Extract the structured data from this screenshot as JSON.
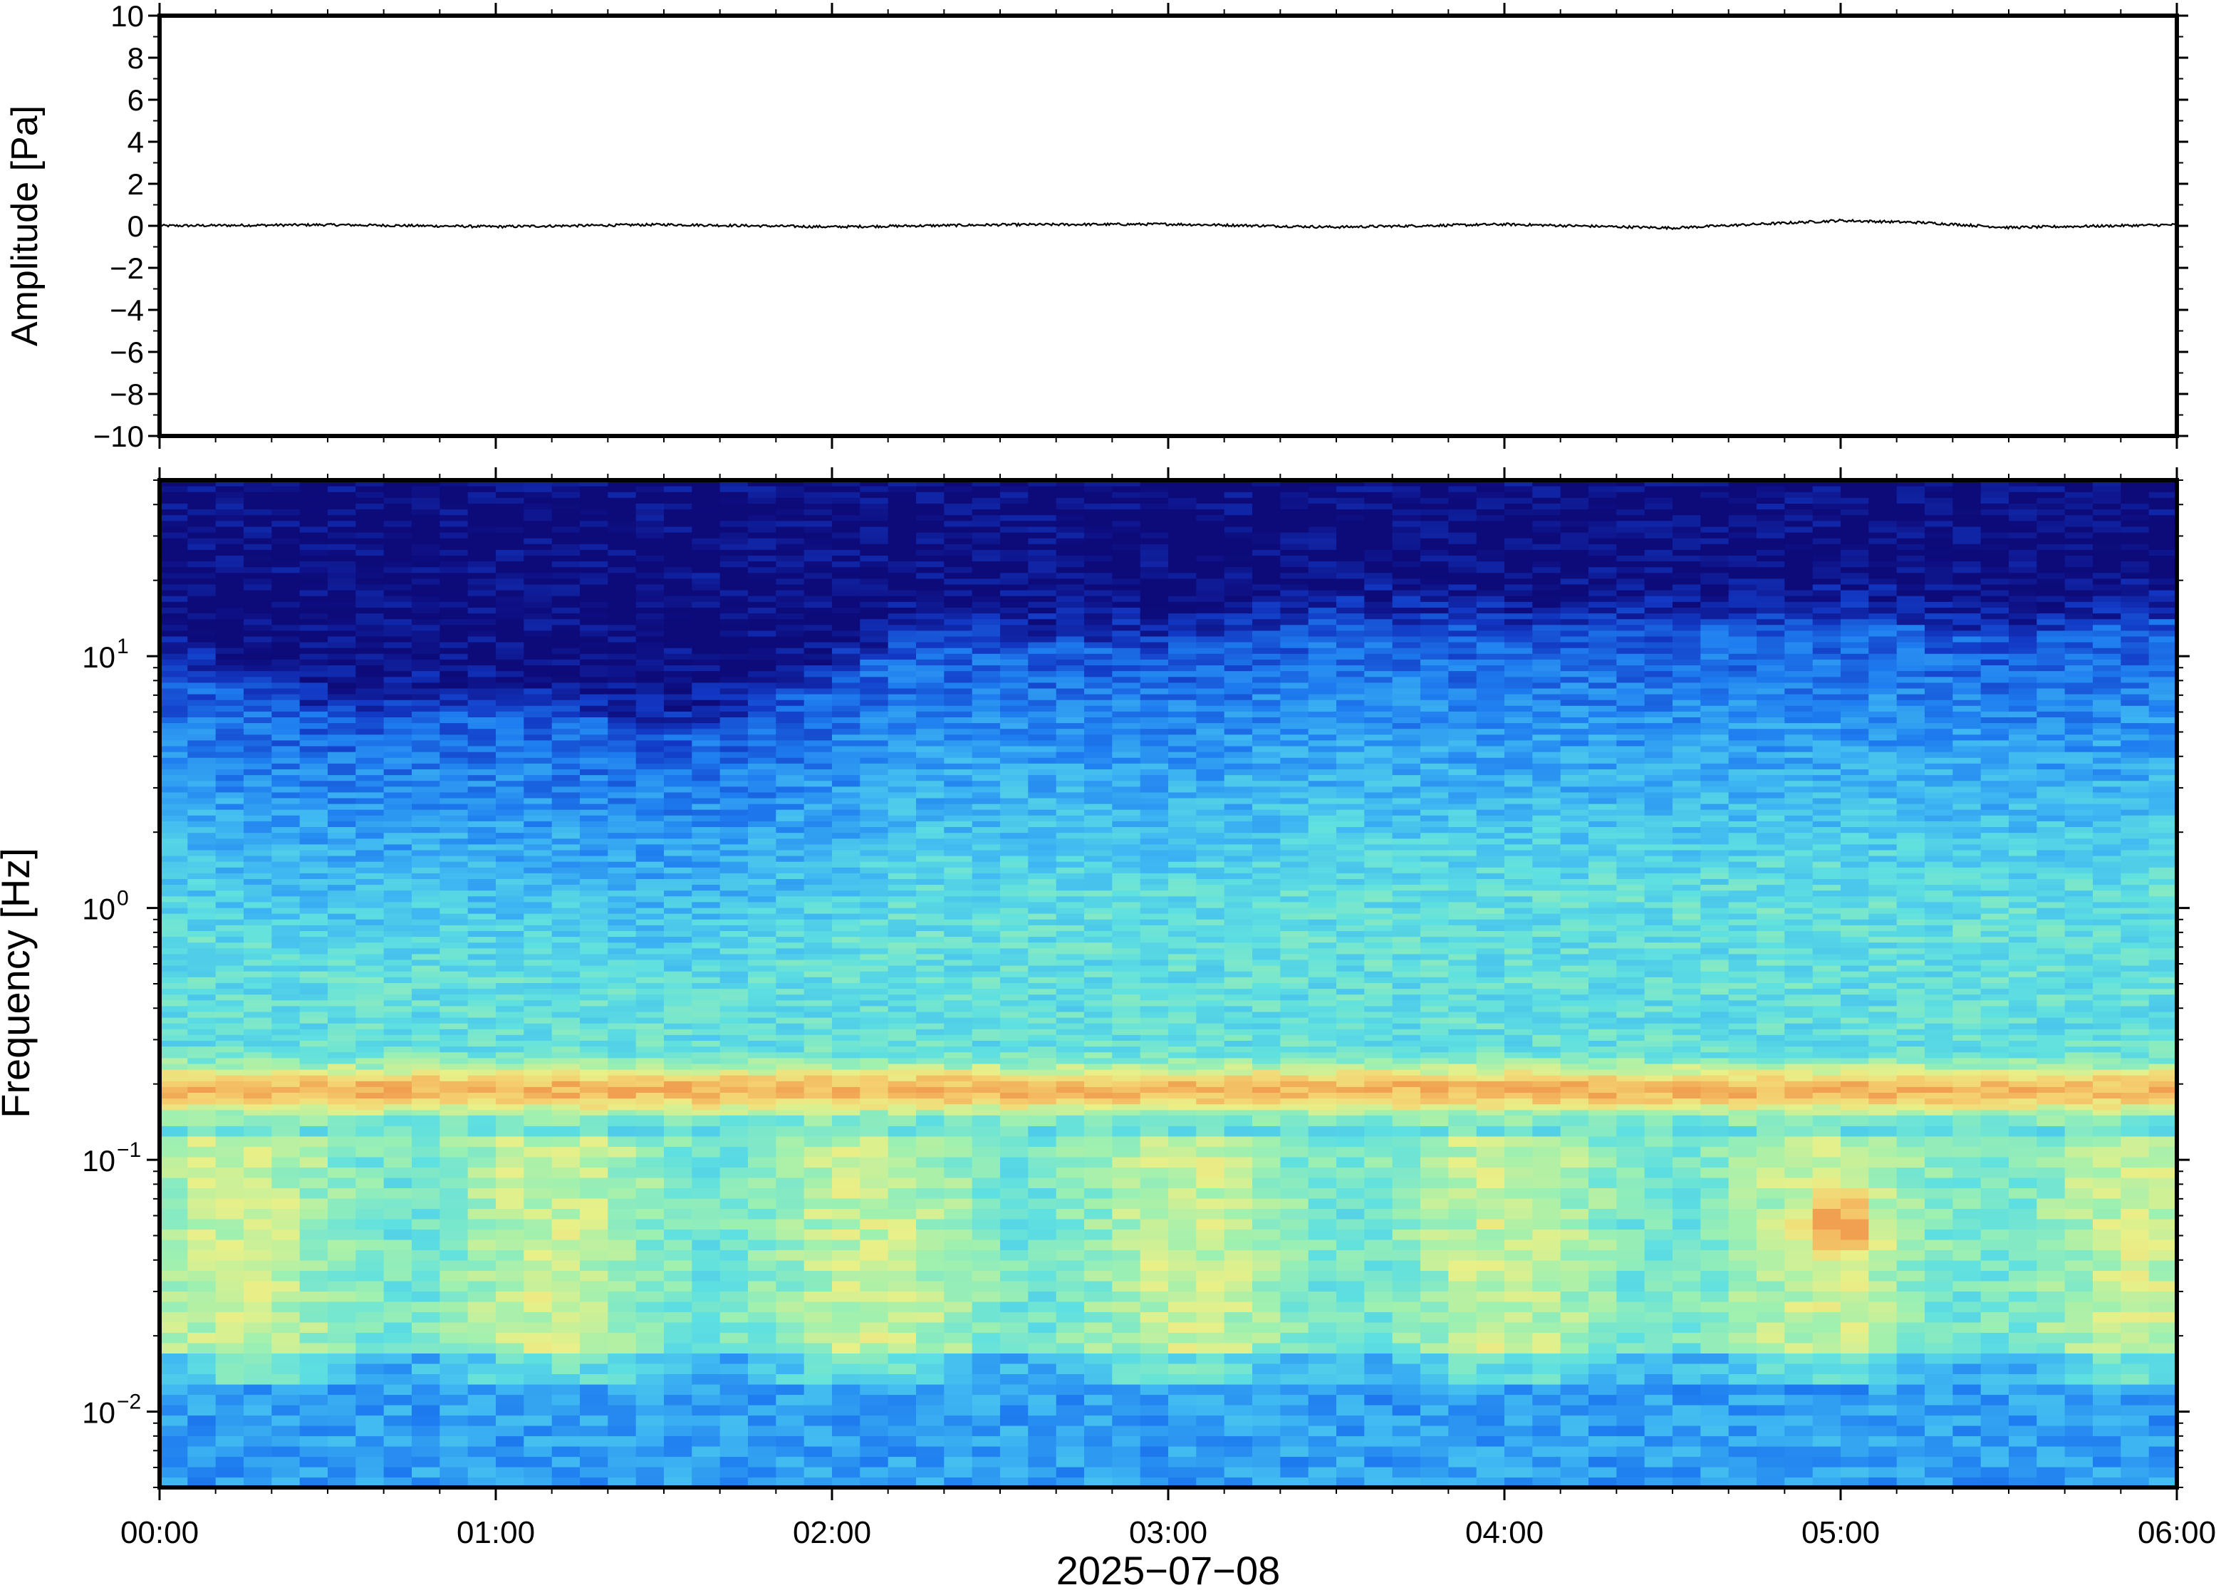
{
  "chart_data": [
    {
      "type": "line",
      "ylabel": "Amplitude [Pa]",
      "ylim": [
        -10,
        10
      ],
      "y_ticks": [
        10,
        8,
        6,
        4,
        2,
        0,
        -2,
        -4,
        -6,
        -8,
        -10
      ],
      "y_tick_labels": [
        "10",
        "8",
        "6",
        "4",
        "2",
        "0",
        "−2",
        "−4",
        "−6",
        "−8",
        "−10"
      ],
      "xlim": [
        "00:00",
        "06:00"
      ],
      "series": [
        {
          "points": [
            [
              "00:00",
              0.0
            ],
            [
              "00:30",
              0.05
            ],
            [
              "01:00",
              -0.04
            ],
            [
              "01:30",
              0.06
            ],
            [
              "02:00",
              -0.05
            ],
            [
              "02:30",
              0.05
            ],
            [
              "03:00",
              0.08
            ],
            [
              "03:30",
              -0.06
            ],
            [
              "04:00",
              0.07
            ],
            [
              "04:30",
              -0.1
            ],
            [
              "05:00",
              0.25
            ],
            [
              "05:15",
              0.15
            ],
            [
              "05:30",
              -0.08
            ],
            [
              "06:00",
              0.05
            ]
          ]
        }
      ],
      "line_color": "#000000",
      "grid": false
    },
    {
      "type": "heatmap",
      "ylabel": "Frequency [Hz]",
      "yscale": "log",
      "ylim": [
        0.005,
        50
      ],
      "y_ticks": [
        0.01,
        0.1,
        1,
        10
      ],
      "y_tick_labels": [
        {
          "base": "10",
          "exp": "−2"
        },
        {
          "base": "10",
          "exp": "−1"
        },
        {
          "base": "10",
          "exp": "0"
        },
        {
          "base": "10",
          "exp": "1"
        }
      ],
      "x_ticks": [
        "00:00",
        "01:00",
        "02:00",
        "03:00",
        "04:00",
        "05:00",
        "06:00"
      ],
      "xlabel": "2025−07−08",
      "xlim": [
        "00:00",
        "06:00"
      ],
      "colormap": [
        "#0d0a7a",
        "#1238c4",
        "#1e7df0",
        "#3fb8f2",
        "#5fe0e0",
        "#9ef0b0",
        "#e8f088",
        "#f5d070",
        "#f0a050"
      ],
      "upper_edge_hz": [
        [
          "00:00",
          9
        ],
        [
          "00:30",
          6
        ],
        [
          "01:00",
          6.5
        ],
        [
          "01:30",
          5
        ],
        [
          "01:45",
          6
        ],
        [
          "02:00",
          8
        ],
        [
          "02:15",
          12
        ],
        [
          "03:00",
          11
        ],
        [
          "03:30",
          14
        ],
        [
          "04:00",
          13
        ],
        [
          "04:30",
          13
        ],
        [
          "05:00",
          14
        ],
        [
          "05:30",
          12
        ],
        [
          "06:00",
          14
        ]
      ],
      "peak_band_hz": 0.19,
      "noted_features": [
        {
          "time": "05:00",
          "freq_hz": 0.055,
          "level": "high"
        }
      ]
    }
  ]
}
